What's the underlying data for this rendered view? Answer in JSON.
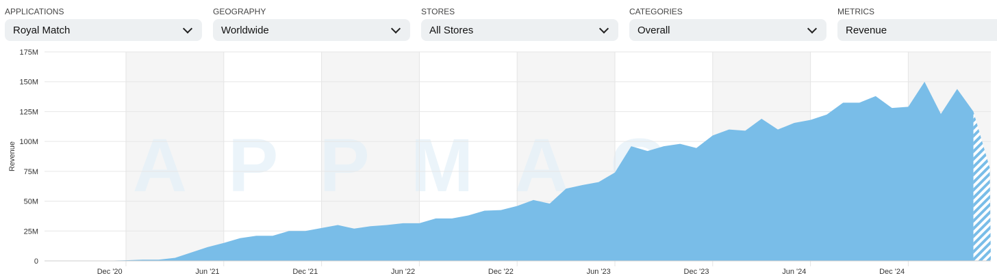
{
  "filters": [
    {
      "label": "APPLICATIONS",
      "value": "Royal Match"
    },
    {
      "label": "GEOGRAPHY",
      "value": "Worldwide"
    },
    {
      "label": "STORES",
      "value": "All Stores"
    },
    {
      "label": "CATEGORIES",
      "value": "Overall"
    },
    {
      "label": "METRICS",
      "value": "Revenue"
    }
  ],
  "watermark": "APPMAGIC",
  "chart_data": {
    "type": "area",
    "ylabel": "Revenue",
    "xlabel": "",
    "ylim": [
      0,
      175000000
    ],
    "yticks": [
      0,
      25000000,
      50000000,
      75000000,
      100000000,
      125000000,
      150000000,
      175000000
    ],
    "ytick_labels": [
      "0",
      "25M",
      "50M",
      "75M",
      "100M",
      "125M",
      "150M",
      "175M"
    ],
    "xtick_labels": [
      "Dec '20",
      "Jun '21",
      "Dec '21",
      "Jun '22",
      "Dec '22",
      "Jun '23",
      "Dec '23",
      "Jun '24",
      "Dec '24"
    ],
    "grid": true,
    "color": "#79bde8",
    "x": [
      "2020-08",
      "2020-09",
      "2020-10",
      "2020-11",
      "2020-12",
      "2021-01",
      "2021-02",
      "2021-03",
      "2021-04",
      "2021-05",
      "2021-06",
      "2021-07",
      "2021-08",
      "2021-09",
      "2021-10",
      "2021-11",
      "2021-12",
      "2022-01",
      "2022-02",
      "2022-03",
      "2022-04",
      "2022-05",
      "2022-06",
      "2022-07",
      "2022-08",
      "2022-09",
      "2022-10",
      "2022-11",
      "2022-12",
      "2023-01",
      "2023-02",
      "2023-03",
      "2023-04",
      "2023-05",
      "2023-06",
      "2023-07",
      "2023-08",
      "2023-09",
      "2023-10",
      "2023-11",
      "2023-12",
      "2024-01",
      "2024-02",
      "2024-03",
      "2024-04",
      "2024-05",
      "2024-06",
      "2024-07",
      "2024-08",
      "2024-09",
      "2024-10",
      "2024-11",
      "2024-12",
      "2025-01",
      "2025-02",
      "2025-03",
      "2025-04",
      "2025-05",
      "2025-06"
    ],
    "values_millions": [
      0,
      0,
      0,
      0,
      0.2,
      0.5,
      1,
      1,
      2.5,
      7,
      11.5,
      15,
      19,
      21,
      21,
      25,
      25,
      27.5,
      30,
      27,
      29,
      30,
      31.5,
      31.5,
      35.5,
      35.5,
      38,
      42,
      42.5,
      46,
      51,
      48,
      60.5,
      63.5,
      66,
      74,
      96,
      92,
      96,
      98,
      94.5,
      105,
      110,
      109,
      119,
      110,
      115.5,
      118,
      122.5,
      132.5,
      132.5,
      138,
      128,
      129,
      150,
      123,
      144,
      125,
      78
    ],
    "forecast_from": "2025-05"
  }
}
